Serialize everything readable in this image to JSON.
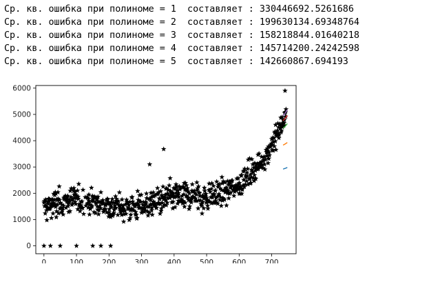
{
  "output": {
    "lines": [
      {
        "prefix": "Ср. кв. ошибка при полиноме = ",
        "degree": "1",
        "mid": "  составляет : ",
        "value": "330446692.5261686"
      },
      {
        "prefix": "Ср. кв. ошибка при полиноме = ",
        "degree": "2",
        "mid": "  составляет : ",
        "value": "199630134.69348764"
      },
      {
        "prefix": "Ср. кв. ошибка при полиноме = ",
        "degree": "3",
        "mid": "  составляет : ",
        "value": "158218844.01640218"
      },
      {
        "prefix": "Ср. кв. ошибка при полиноме = ",
        "degree": "4",
        "mid": "  составляет : ",
        "value": "145714200.24242598"
      },
      {
        "prefix": "Ср. кв. ошибка при полиноме = ",
        "degree": "5",
        "mid": "  составляет : ",
        "value": "142660867.694193"
      }
    ]
  },
  "chart_data": {
    "type": "scatter",
    "title": "",
    "xlabel": "",
    "ylabel": "",
    "xlim": [
      -25,
      775
    ],
    "ylim": [
      -300,
      6100
    ],
    "grid": false,
    "legend": "none",
    "x_ticks": [
      0,
      100,
      200,
      300,
      400,
      500,
      600,
      700
    ],
    "y_ticks": [
      0,
      1000,
      2000,
      3000,
      4000,
      5000,
      6000
    ],
    "marker": "star",
    "marker_color": "#000000",
    "outliers": [
      {
        "x": 0,
        "y": 0
      },
      {
        "x": 20,
        "y": 0
      },
      {
        "x": 50,
        "y": 0
      },
      {
        "x": 100,
        "y": 0
      },
      {
        "x": 150,
        "y": 0
      },
      {
        "x": 175,
        "y": 0
      },
      {
        "x": 205,
        "y": 0
      },
      {
        "x": 325,
        "y": 3100
      },
      {
        "x": 368,
        "y": 3680
      },
      {
        "x": 741,
        "y": 5900
      }
    ],
    "series": [
      {
        "name": "",
        "color": "#1f77b4",
        "points": [
          [
            735,
            2920
          ],
          [
            742,
            2950
          ],
          [
            748,
            2980
          ]
        ]
      },
      {
        "name": "",
        "color": "#ff7f0e",
        "points": [
          [
            735,
            3830
          ],
          [
            742,
            3880
          ],
          [
            748,
            3930
          ]
        ]
      },
      {
        "name": "",
        "color": "#2ca02c",
        "points": [
          [
            735,
            4480
          ],
          [
            742,
            4560
          ],
          [
            748,
            4650
          ]
        ]
      },
      {
        "name": "",
        "color": "#d62728",
        "points": [
          [
            735,
            4760
          ],
          [
            742,
            4860
          ],
          [
            748,
            4960
          ]
        ]
      },
      {
        "name": "",
        "color": "#9467bd",
        "points": [
          [
            735,
            4950
          ],
          [
            742,
            5060
          ],
          [
            748,
            5180
          ]
        ]
      }
    ]
  }
}
